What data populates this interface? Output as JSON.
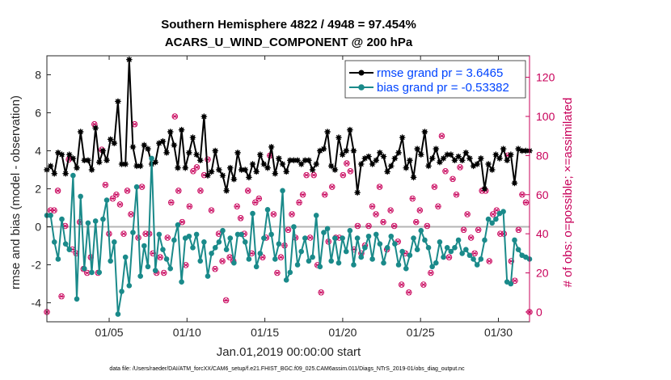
{
  "chart_data": {
    "type": "line",
    "title_line1": "Southern Hemisphere 4822 / 4948 = 97.454%",
    "title_line2": "ACARS_U_WIND_COMPONENT @ 200 hPa",
    "xlabel": "Jan.01,2019 00:00:00 start",
    "ylabel_left": "rmse and bias (model - observation)",
    "ylabel_right": "# of obs: o=possible; ×=assimilated",
    "x_ticks": [
      "01/05",
      "01/10",
      "01/15",
      "01/20",
      "01/25",
      "01/30"
    ],
    "x_tick_days": [
      5,
      10,
      15,
      20,
      25,
      30
    ],
    "xlim": [
      1,
      32
    ],
    "ylim_left": [
      -5,
      9
    ],
    "yticks_left": [
      "-4",
      "-2",
      "0",
      "2",
      "4",
      "6",
      "8"
    ],
    "ylim_right": [
      -5,
      131
    ],
    "yticks_right": [
      "0",
      "20",
      "40",
      "60",
      "80",
      "100",
      "120"
    ],
    "colors": {
      "rmse": "#000000",
      "bias": "#1a8a8a",
      "obs": "#c8005a",
      "zero": "#b4b4b4"
    },
    "series": [
      {
        "name": "rmse grand pr = 3.6465",
        "values": [
          3.0,
          3.2,
          2.8,
          3.9,
          3.8,
          2.8,
          3.8,
          3.6,
          3.1,
          5.0,
          3.5,
          3.5,
          3.0,
          5.2,
          3.4,
          4.0,
          3.5,
          4.6,
          4.4,
          6.6,
          3.3,
          3.3,
          8.8,
          4.2,
          3.2,
          3.2,
          4.3,
          4.1,
          3.3,
          3.4,
          4.4,
          4.5,
          3.9,
          5.0,
          4.3,
          3.1,
          5.1,
          3.1,
          3.9,
          4.7,
          3.8,
          3.5,
          5.8,
          2.7,
          2.9,
          4.0,
          3.0,
          2.7,
          1.9,
          3.1,
          2.5,
          3.9,
          3.0,
          3.0,
          2.6,
          3.3,
          2.9,
          3.8,
          3.3,
          3.1,
          4.2,
          2.8,
          3.6,
          3.3,
          2.9,
          3.5,
          3.5,
          3.5,
          3.3,
          3.5,
          3.5,
          3.0,
          3.3,
          4.0,
          4.1,
          5.0,
          3.2,
          3.0,
          4.7,
          3.8,
          4.0,
          5.1,
          4.0,
          1.8,
          3.3,
          3.6,
          3.7,
          3.3,
          3.5,
          3.9,
          3.7,
          2.9,
          3.2,
          3.6,
          3.9,
          4.7,
          3.1,
          3.5,
          2.6,
          4.1,
          3.8,
          5.0,
          3.2,
          3.6,
          4.1,
          3.4,
          3.6,
          3.8,
          3.8,
          3.5,
          3.7,
          3.5,
          3.9,
          3.6,
          3.2,
          3.3,
          3.6,
          2.0,
          3.3,
          3.0,
          3.8,
          3.6,
          4.1,
          3.5,
          3.8,
          2.3,
          4.1,
          4.0,
          4.0,
          4.0
        ]
      },
      {
        "name": "bias grand pr = -0.53382",
        "values": [
          0.6,
          0.6,
          -0.8,
          -1.7,
          0.4,
          -0.9,
          -1.2,
          2.7,
          -3.8,
          1.6,
          -2.2,
          0.2,
          -2.4,
          0.3,
          -2.4,
          0.4,
          1.4,
          -1.8,
          -0.8,
          -4.6,
          -3.4,
          -1.6,
          -3.1,
          -0.3,
          2.1,
          -2.6,
          -1.0,
          -2.1,
          3.6,
          -2.3,
          -0.4,
          -1.2,
          -1.7,
          -2.2,
          -0.7,
          0.1,
          -2.9,
          -0.6,
          -0.5,
          -1.1,
          -0.4,
          -1.8,
          -0.8,
          -2.6,
          -1.4,
          -1.1,
          -0.8,
          -0.2,
          -1.2,
          -0.6,
          -1.9,
          -0.4,
          -0.4,
          -0.8,
          -1.7,
          0.7,
          -2.1,
          -1.4,
          -0.6,
          0.9,
          -0.4,
          -1.7,
          -0.9,
          1.9,
          -2.8,
          -2.4,
          0.0,
          -2.0,
          -1.3,
          -0.6,
          -1.8,
          -1.6,
          0.6,
          -2.1,
          -0.3,
          -0.1,
          -1.8,
          -0.6,
          -1.9,
          -0.6,
          -1.3,
          -0.2,
          -2.0,
          -0.6,
          -1.6,
          -1.1,
          -0.5,
          -1.7,
          -0.4,
          -0.9,
          -1.9,
          -1.1,
          -0.5,
          -0.9,
          -2.0,
          -1.3,
          -2.2,
          -1.5,
          -0.6,
          -1.2,
          -0.2,
          -0.7,
          -1.1,
          -2.1,
          -1.9,
          -0.8,
          -1.6,
          -1.1,
          -1.3,
          -1.1,
          -0.7,
          -1.4,
          -1.2,
          -1.5,
          -1.7,
          -2.0,
          -1.7,
          -0.7,
          0.4,
          0.2,
          0.4,
          0.7,
          0.8,
          -2.9,
          -3.0,
          -0.7,
          -1.2,
          -1.5,
          -1.6,
          -1.7
        ]
      }
    ],
    "obs_series": {
      "name": "# of obs",
      "values": [
        0,
        52,
        52,
        62,
        8,
        44,
        78,
        32,
        30,
        46,
        22,
        20,
        28,
        96,
        20,
        83,
        65,
        40,
        58,
        60,
        55,
        40,
        62,
        50,
        96,
        38,
        64,
        40,
        40,
        30,
        20,
        28,
        20,
        38,
        56,
        100,
        62,
        46,
        24,
        54,
        72,
        74,
        62,
        70,
        78,
        52,
        22,
        40,
        26,
        6,
        28,
        26,
        54,
        48,
        40,
        62,
        30,
        56,
        58,
        28,
        38,
        80,
        50,
        20,
        28,
        34,
        42,
        50,
        38,
        56,
        60,
        70,
        38,
        70,
        24,
        10,
        60,
        36,
        64,
        38,
        38,
        70,
        76,
        72,
        32,
        44,
        30,
        34,
        44,
        54,
        50,
        64,
        46,
        32,
        52,
        44,
        36,
        14,
        30,
        10,
        58,
        46,
        52,
        14,
        44,
        20,
        64,
        54,
        90,
        72,
        28,
        68,
        60,
        74,
        42,
        50,
        38,
        30,
        42,
        62,
        62,
        26,
        50,
        52,
        40,
        40,
        80,
        26,
        16,
        42,
        60,
        56,
        0
      ]
    },
    "legend_position": "top-right",
    "grid": false
  },
  "footnote": "data file: /Users/raeder/DAI/ATM_forcXX/CAM6_setup/f.e21.FHIST_BGC.f09_025.CAM6assim.011/Diags_NTrS_2019-01/obs_diag_output.nc"
}
